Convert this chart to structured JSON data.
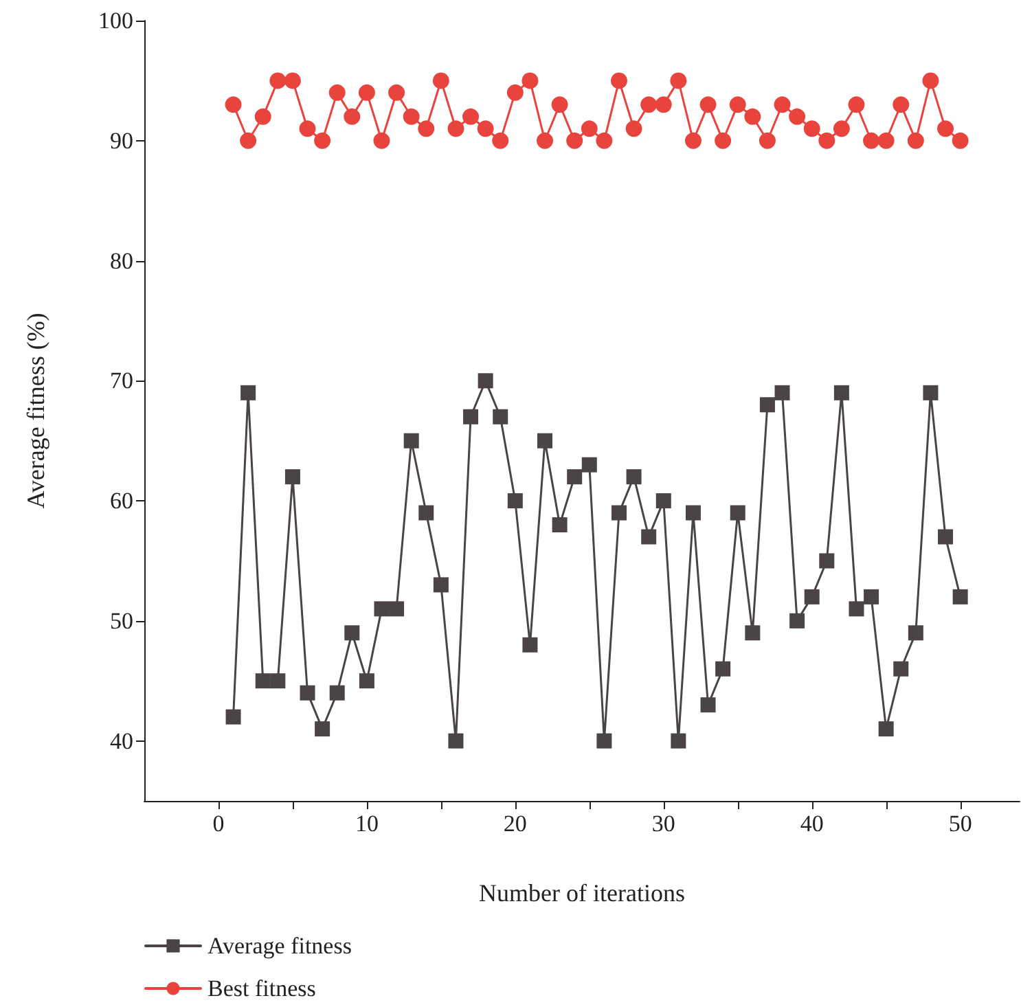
{
  "chart_data": {
    "type": "line",
    "xlabel": "Number of iterations",
    "ylabel": "Average fitness (%)",
    "x": [
      1,
      2,
      3,
      4,
      5,
      6,
      7,
      8,
      9,
      10,
      11,
      12,
      13,
      14,
      15,
      16,
      17,
      18,
      19,
      20,
      21,
      22,
      23,
      24,
      25,
      26,
      27,
      28,
      29,
      30,
      31,
      32,
      33,
      34,
      35,
      36,
      37,
      38,
      39,
      40,
      41,
      42,
      43,
      44,
      45,
      46,
      47,
      48,
      49,
      50
    ],
    "series": [
      {
        "name": "Average fitness",
        "color": "#4a4444",
        "marker": "square",
        "values": [
          42,
          69,
          45,
          45,
          62,
          44,
          41,
          44,
          49,
          45,
          51,
          51,
          65,
          59,
          53,
          40,
          67,
          70,
          67,
          60,
          48,
          65,
          58,
          62,
          63,
          40,
          59,
          62,
          57,
          60,
          40,
          59,
          43,
          46,
          59,
          49,
          68,
          69,
          50,
          52,
          55,
          69,
          51,
          52,
          41,
          46,
          49,
          69,
          57,
          52
        ]
      },
      {
        "name": "Best fitness",
        "color": "#e8433d",
        "marker": "circle",
        "values": [
          93,
          90,
          92,
          95,
          95,
          91,
          90,
          94,
          92,
          94,
          90,
          94,
          92,
          91,
          95,
          91,
          92,
          91,
          90,
          94,
          95,
          90,
          93,
          90,
          91,
          90,
          95,
          91,
          93,
          93,
          95,
          90,
          93,
          90,
          93,
          92,
          90,
          93,
          92,
          91,
          90,
          91,
          93,
          90,
          90,
          93,
          90,
          95,
          91,
          90
        ]
      }
    ],
    "xlim": [
      -5,
      54
    ],
    "xticks": [
      0,
      {
        "value": 5,
        "label": null
      },
      10,
      {
        "value": 15,
        "label": null
      },
      20,
      {
        "value": 25,
        "label": null
      },
      30,
      {
        "value": 35,
        "label": null
      },
      40,
      {
        "value": 45,
        "label": null
      },
      50
    ],
    "ylim": [
      35,
      100
    ],
    "yticks": [
      40,
      50,
      60,
      70,
      80,
      90,
      100
    ],
    "grid": false,
    "legend": "bottom left",
    "line_style": "solid"
  }
}
